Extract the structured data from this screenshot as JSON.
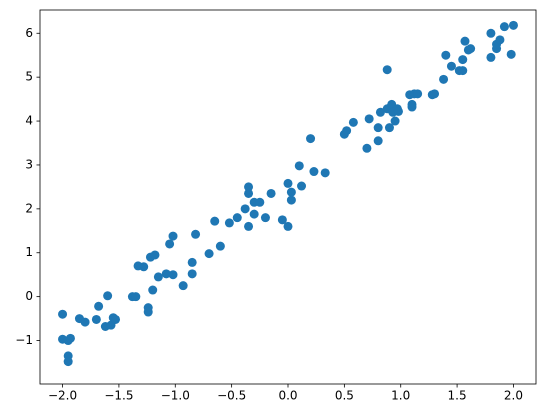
{
  "chart_data": {
    "type": "scatter",
    "color": "#1f77b4",
    "x": [
      -2.0,
      -2.0,
      -1.95,
      -1.93,
      -1.95,
      -1.95,
      -1.85,
      -1.8,
      -1.7,
      -1.68,
      -1.62,
      -1.6,
      -1.57,
      -1.55,
      -1.53,
      -1.38,
      -1.35,
      -1.33,
      -1.28,
      -1.24,
      -1.24,
      -1.22,
      -1.2,
      -1.18,
      -1.15,
      -1.08,
      -1.05,
      -1.02,
      -1.02,
      -0.93,
      -0.85,
      -0.85,
      -0.82,
      -0.7,
      -0.65,
      -0.6,
      -0.52,
      -0.45,
      -0.38,
      -0.35,
      -0.35,
      -0.35,
      -0.3,
      -0.3,
      -0.25,
      -0.2,
      -0.15,
      -0.05,
      0.0,
      0.0,
      0.03,
      0.03,
      0.1,
      0.12,
      0.2,
      0.23,
      0.33,
      0.5,
      0.52,
      0.58,
      0.7,
      0.72,
      0.8,
      0.8,
      0.82,
      0.88,
      0.88,
      0.9,
      0.92,
      0.93,
      0.95,
      0.97,
      0.98,
      1.08,
      1.1,
      1.1,
      1.12,
      1.15,
      1.28,
      1.3,
      1.38,
      1.4,
      1.45,
      1.52,
      1.55,
      1.55,
      1.57,
      1.6,
      1.62,
      1.8,
      1.8,
      1.85,
      1.85,
      1.88,
      1.92,
      1.98,
      2.0
    ],
    "values": [
      -0.4,
      -0.97,
      -1.0,
      -0.95,
      -1.35,
      -1.48,
      -0.5,
      -0.58,
      -0.52,
      -0.22,
      -0.68,
      0.02,
      -0.65,
      -0.48,
      -0.52,
      0.0,
      0.0,
      0.7,
      0.68,
      -0.25,
      -0.35,
      0.9,
      0.15,
      0.95,
      0.45,
      0.52,
      1.2,
      1.38,
      0.5,
      0.25,
      0.52,
      0.78,
      1.42,
      0.98,
      1.72,
      1.15,
      1.68,
      1.8,
      2.0,
      1.6,
      2.5,
      2.35,
      2.15,
      1.88,
      2.15,
      1.8,
      2.35,
      1.75,
      2.58,
      1.6,
      2.2,
      2.38,
      2.98,
      2.52,
      3.6,
      2.85,
      2.82,
      3.7,
      3.78,
      3.97,
      3.38,
      4.05,
      3.55,
      3.85,
      4.2,
      4.28,
      5.17,
      3.85,
      4.38,
      4.2,
      4.0,
      4.28,
      4.22,
      4.6,
      4.38,
      4.32,
      4.62,
      4.62,
      4.6,
      4.62,
      4.95,
      5.5,
      5.25,
      5.15,
      5.15,
      5.4,
      5.82,
      5.62,
      5.65,
      6.0,
      5.45,
      5.65,
      5.75,
      5.85,
      6.15,
      5.52,
      6.18
    ],
    "xlim": [
      -2.2,
      2.2
    ],
    "ylim": [
      -1.99,
      6.53
    ],
    "xticks": [
      {
        "value": -2,
        "label": "−2.0"
      },
      {
        "value": -1.5,
        "label": "−1.5"
      },
      {
        "value": -1,
        "label": "−1.0"
      },
      {
        "value": -0.5,
        "label": "−0.5"
      },
      {
        "value": 0,
        "label": "0.0"
      },
      {
        "value": 0.5,
        "label": "0.5"
      },
      {
        "value": 1,
        "label": "1.0"
      },
      {
        "value": 1.5,
        "label": "1.5"
      },
      {
        "value": 2,
        "label": "2.0"
      }
    ],
    "yticks": [
      {
        "value": -1,
        "label": "−1"
      },
      0,
      1,
      2,
      3,
      4,
      5,
      6
    ]
  }
}
